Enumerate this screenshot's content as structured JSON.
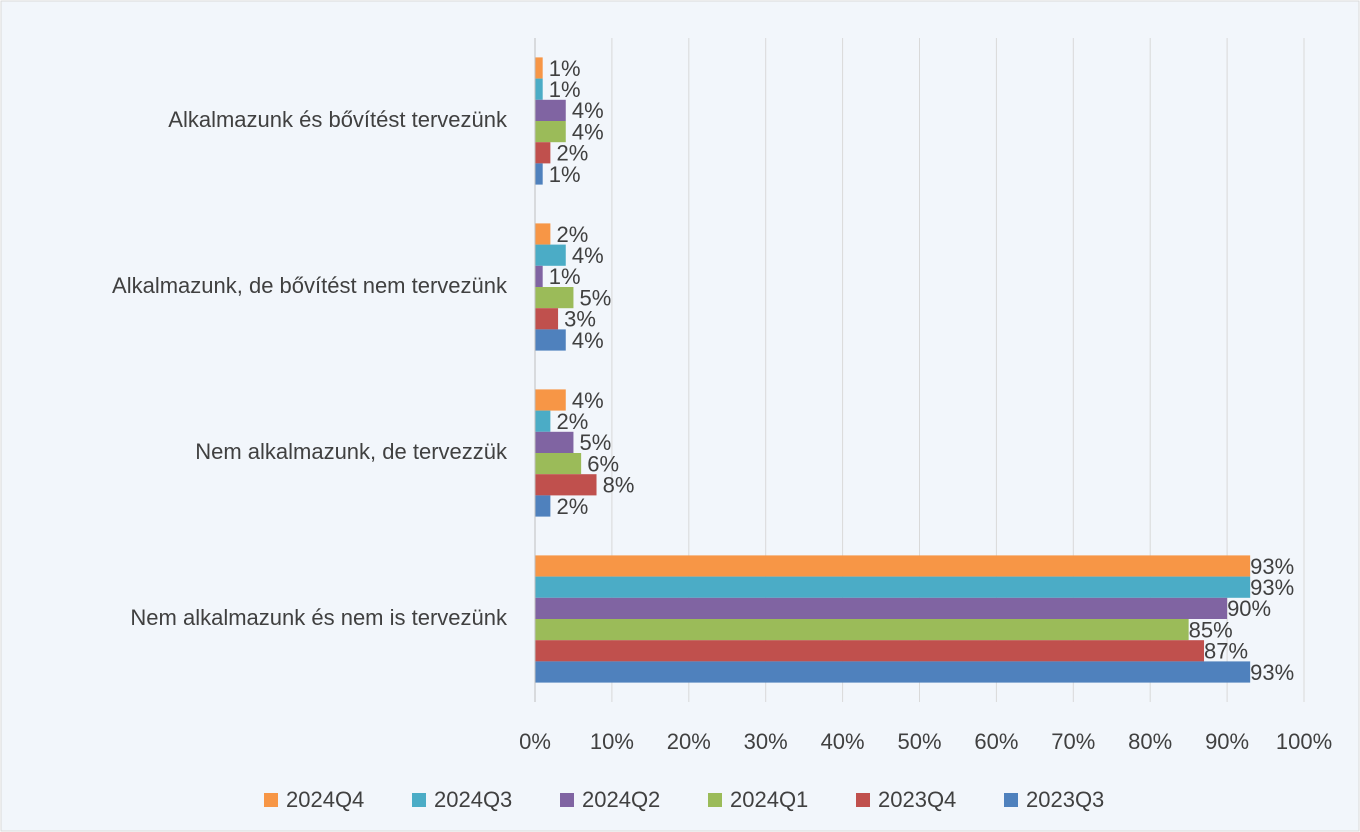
{
  "chart_data": {
    "type": "hbar",
    "categories": [
      "Alkalmazunk és bővítést tervezünk",
      "Alkalmazunk, de bővítést nem tervezünk",
      "Nem alkalmazunk, de tervezzük",
      "Nem alkalmazunk és nem is tervezünk"
    ],
    "series": [
      {
        "name": "2024Q4",
        "color": "#f79646",
        "values": [
          1,
          2,
          4,
          93
        ],
        "value_labels": [
          "1%",
          "2%",
          "4%",
          "93%"
        ]
      },
      {
        "name": "2024Q3",
        "color": "#4bacc6",
        "values": [
          1,
          4,
          2,
          93
        ],
        "value_labels": [
          "1%",
          "4%",
          "2%",
          "93%"
        ]
      },
      {
        "name": "2024Q2",
        "color": "#8064a2",
        "values": [
          4,
          1,
          5,
          90
        ],
        "value_labels": [
          "4%",
          "1%",
          "5%",
          "90%"
        ]
      },
      {
        "name": "2024Q1",
        "color": "#9bbb59",
        "values": [
          4,
          5,
          6,
          85
        ],
        "value_labels": [
          "4%",
          "5%",
          "6%",
          "85%"
        ]
      },
      {
        "name": "2023Q4",
        "color": "#c0504d",
        "values": [
          2,
          3,
          8,
          87
        ],
        "value_labels": [
          "2%",
          "3%",
          "8%",
          "87%"
        ]
      },
      {
        "name": "2023Q3",
        "color": "#4f81bd",
        "values": [
          1,
          4,
          2,
          93
        ],
        "value_labels": [
          "1%",
          "4%",
          "2%",
          "93%"
        ]
      }
    ],
    "xlim": [
      0,
      100
    ],
    "xticks": [
      {
        "value": 0,
        "label": "0%"
      },
      {
        "value": 10,
        "label": "10%"
      },
      {
        "value": 20,
        "label": "20%"
      },
      {
        "value": 30,
        "label": "30%"
      },
      {
        "value": 40,
        "label": "40%"
      },
      {
        "value": 50,
        "label": "50%"
      },
      {
        "value": 60,
        "label": "60%"
      },
      {
        "value": 70,
        "label": "70%"
      },
      {
        "value": 80,
        "label": "80%"
      },
      {
        "value": 90,
        "label": "90%"
      },
      {
        "value": 100,
        "label": "100%"
      }
    ],
    "grid": true,
    "legend": "bottom"
  }
}
